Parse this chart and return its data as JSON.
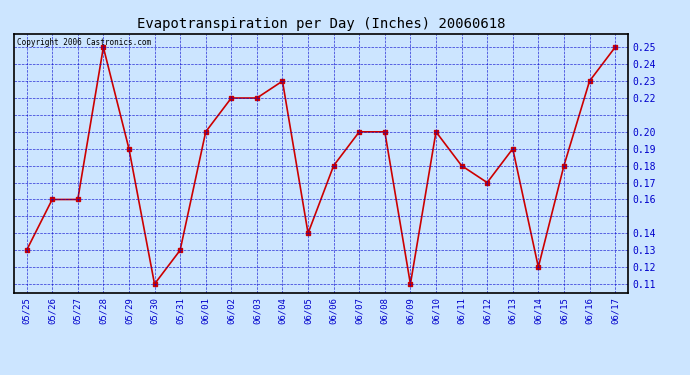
{
  "title": "Evapotranspiration per Day (Inches) 20060618",
  "copyright_text": "Copyright 2006 Castronics.com",
  "dates": [
    "05/25",
    "05/26",
    "05/27",
    "05/28",
    "05/29",
    "05/30",
    "05/31",
    "06/01",
    "06/02",
    "06/03",
    "06/04",
    "06/05",
    "06/06",
    "06/07",
    "06/08",
    "06/09",
    "06/10",
    "06/11",
    "06/12",
    "06/13",
    "06/14",
    "06/15",
    "06/16",
    "06/17"
  ],
  "values": [
    0.13,
    0.16,
    0.16,
    0.25,
    0.19,
    0.11,
    0.13,
    0.2,
    0.22,
    0.22,
    0.23,
    0.14,
    0.18,
    0.2,
    0.2,
    0.11,
    0.2,
    0.18,
    0.17,
    0.19,
    0.12,
    0.18,
    0.23,
    0.25
  ],
  "ylim": [
    0.105,
    0.258
  ],
  "yticks": [
    0.11,
    0.12,
    0.13,
    0.14,
    0.16,
    0.17,
    0.18,
    0.19,
    0.2,
    0.22,
    0.23,
    0.24,
    0.25
  ],
  "ytick_labels": [
    "0.11",
    "0.12",
    "0.13",
    "0.14",
    "0.16",
    "0.17",
    "0.18",
    "0.19",
    "0.20",
    "0.22",
    "0.23",
    "0.24",
    "0.25"
  ],
  "line_color": "#cc0000",
  "marker_color": "#cc0000",
  "bg_color": "#cce5ff",
  "plot_bg_color": "#cce5ff",
  "grid_color": "#0000cc",
  "title_color": "#000000",
  "tick_label_color": "#0000cc",
  "marker_size": 2.5,
  "line_width": 1.2,
  "fig_width": 6.9,
  "fig_height": 3.75,
  "dpi": 100
}
